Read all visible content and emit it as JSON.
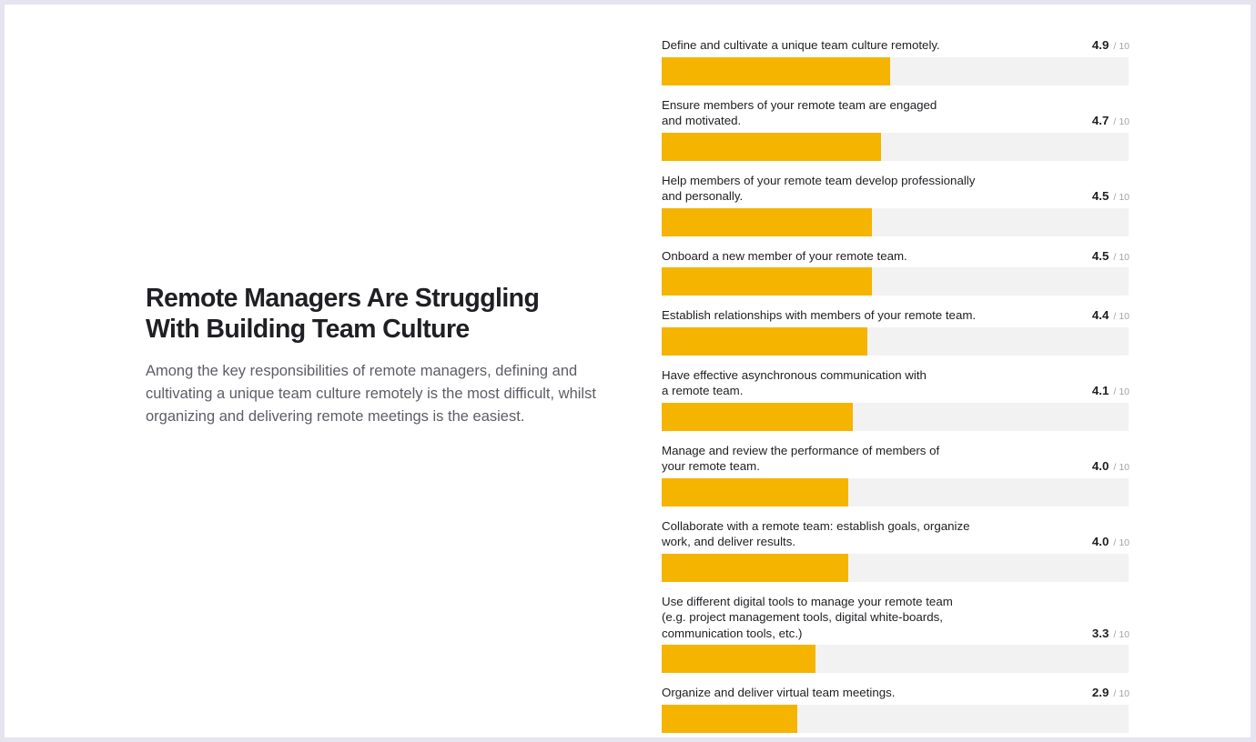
{
  "intro": {
    "title": "Remote Managers Are Struggling With Building Team Culture",
    "description": "Among the key responsibilities of remote managers, defining and cultivating a unique team culture remotely is the most difficult, whilst organizing and delivering remote meetings is the easiest."
  },
  "colors": {
    "bar": "#f5b400",
    "track": "#f2f2f2",
    "page_frame": "#e6e4f0"
  },
  "chart_data": {
    "type": "bar",
    "orientation": "horizontal",
    "xlim": [
      0,
      10
    ],
    "scale_suffix": "10",
    "separator": "/",
    "grid": false,
    "categories": [
      "Define and cultivate a unique team culture remotely.",
      "Ensure members of your remote team are engaged and motivated.",
      "Help members of your remote team develop professionally and personally.",
      "Onboard a new member of your remote team.",
      "Establish relationships with members of your remote team.",
      "Have effective asynchronous communication with a remote team.",
      "Manage and review the performance of members of your remote team.",
      "Collaborate with a remote team: establish goals, organize work, and deliver results.",
      "Use different digital tools to manage your remote team (e.g. project management tools, digital white-boards, communication tools, etc.)",
      "Organize and deliver virtual team meetings."
    ],
    "values": [
      4.9,
      4.7,
      4.5,
      4.5,
      4.4,
      4.1,
      4.0,
      4.0,
      3.3,
      2.9
    ],
    "value_labels": [
      "4.9",
      "4.7",
      "4.5",
      "4.5",
      "4.4",
      "4.1",
      "4.0",
      "4.0",
      "3.3",
      "2.9"
    ],
    "label_lines": [
      [
        "Define and cultivate a unique team culture remotely."
      ],
      [
        "Ensure members of your remote team are engaged",
        "and motivated."
      ],
      [
        "Help members of your remote team develop professionally",
        "and personally."
      ],
      [
        "Onboard a new member of your remote team."
      ],
      [
        "Establish relationships with members of your remote team."
      ],
      [
        "Have effective asynchronous communication with",
        "a remote team."
      ],
      [
        "Manage and review the performance of members of",
        "your remote team."
      ],
      [
        "Collaborate with a remote team: establish goals, organize",
        "work, and deliver results."
      ],
      [
        "Use different digital tools to manage your remote team",
        "(e.g. project management tools, digital white-boards,",
        "communication tools, etc.)"
      ],
      [
        "Organize and deliver virtual team meetings."
      ]
    ]
  }
}
